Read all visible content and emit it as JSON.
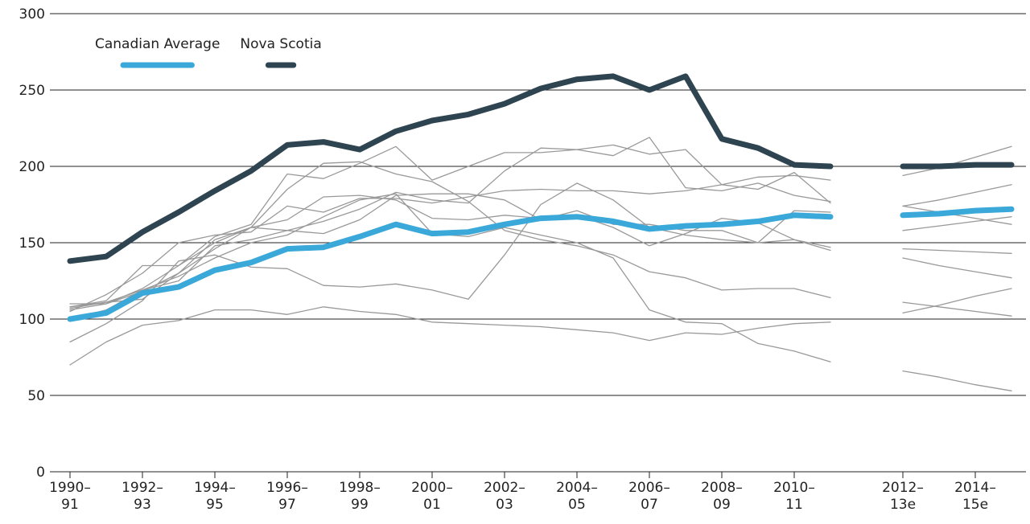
{
  "chart_data": {
    "type": "line",
    "categories": [
      "1990–91",
      null,
      "1992–93",
      null,
      "1994–95",
      null,
      "1996–97",
      null,
      "1998–99",
      null,
      "2000–01",
      null,
      "2002–03",
      null,
      "2004–05",
      null,
      "2006–07",
      null,
      "2008–09",
      null,
      "2010–11",
      null,
      null,
      "2012–13e",
      null,
      "2014–15e",
      null
    ],
    "ylim": [
      0,
      300
    ],
    "yticks": [
      0,
      50,
      100,
      150,
      200,
      250,
      300
    ],
    "grid": true,
    "background_color": "#999999",
    "series": [
      {
        "color": "#999999",
        "values": [
          110,
          110,
          120,
          135,
          150,
          160,
          185,
          202,
          203,
          195,
          190,
          177,
          158,
          152,
          148,
          142,
          131,
          127,
          119,
          120,
          120,
          114,
          null,
          146,
          145,
          144,
          143
        ]
      },
      {
        "color": "#999999",
        "values": [
          105,
          116,
          130,
          150,
          155,
          157,
          174,
          170,
          179,
          179,
          176,
          180,
          184,
          185,
          184,
          184,
          182,
          184,
          188,
          193,
          194,
          191,
          null,
          194,
          199,
          206,
          213
        ]
      },
      {
        "color": "#999999",
        "values": [
          108,
          112,
          135,
          135,
          154,
          162,
          195,
          192,
          202,
          213,
          191,
          200,
          209,
          209,
          211,
          214,
          208,
          211,
          188,
          185,
          196,
          176,
          null,
          174,
          178,
          183,
          188
        ]
      },
      {
        "color": "#999999",
        "values": [
          100,
          106,
          119,
          125,
          148,
          152,
          158,
          164,
          172,
          183,
          178,
          176,
          197,
          212,
          211,
          207,
          219,
          186,
          184,
          189,
          181,
          177,
          null,
          174,
          170,
          166,
          162
        ]
      },
      {
        "color": "#999999",
        "values": [
          85,
          97,
          112,
          138,
          142,
          134,
          133,
          122,
          121,
          123,
          119,
          113,
          142,
          175,
          189,
          178,
          160,
          155,
          152,
          150,
          152,
          147,
          null,
          158,
          161,
          164,
          167
        ]
      },
      {
        "color": "#999999",
        "values": [
          70,
          85,
          96,
          99,
          106,
          106,
          103,
          108,
          105,
          103,
          98,
          97,
          96,
          95,
          93,
          91,
          86,
          91,
          90,
          94,
          97,
          98,
          null,
          111,
          108,
          105,
          102
        ]
      },
      {
        "color": "#999999",
        "values": [
          106,
          110,
          118,
          130,
          146,
          160,
          165,
          180,
          181,
          178,
          166,
          165,
          168,
          166,
          168,
          160,
          148,
          156,
          166,
          163,
          152,
          145,
          null,
          140,
          135,
          131,
          127
        ]
      },
      {
        "color": "#999999",
        "values": [
          107,
          111,
          119,
          128,
          140,
          150,
          155,
          167,
          178,
          182,
          156,
          154,
          160,
          155,
          150,
          140,
          106,
          98,
          97,
          84,
          79,
          72,
          null,
          66,
          62,
          57,
          53
        ]
      },
      {
        "color": "#999999",
        "values": [
          108,
          111,
          113,
          130,
          152,
          160,
          158,
          156,
          165,
          181,
          182,
          182,
          178,
          165,
          171,
          162,
          162,
          158,
          158,
          150,
          171,
          170,
          null,
          104,
          109,
          115,
          120
        ]
      },
      {
        "name": "Canadian Average",
        "color": "#3aa8d8",
        "values": [
          100,
          104,
          117,
          121,
          132,
          137,
          146,
          147,
          154,
          162,
          156,
          157,
          162,
          166,
          167,
          164,
          159,
          161,
          162,
          164,
          168,
          167,
          null,
          168,
          169,
          171,
          172
        ]
      },
      {
        "name": "Nova Scotia",
        "color": "#2e4450",
        "values": [
          138,
          141,
          157,
          170,
          184,
          197,
          214,
          216,
          211,
          223,
          230,
          234,
          241,
          251,
          257,
          259,
          250,
          259,
          218,
          212,
          201,
          200,
          null,
          200,
          200,
          201,
          201
        ]
      }
    ]
  }
}
